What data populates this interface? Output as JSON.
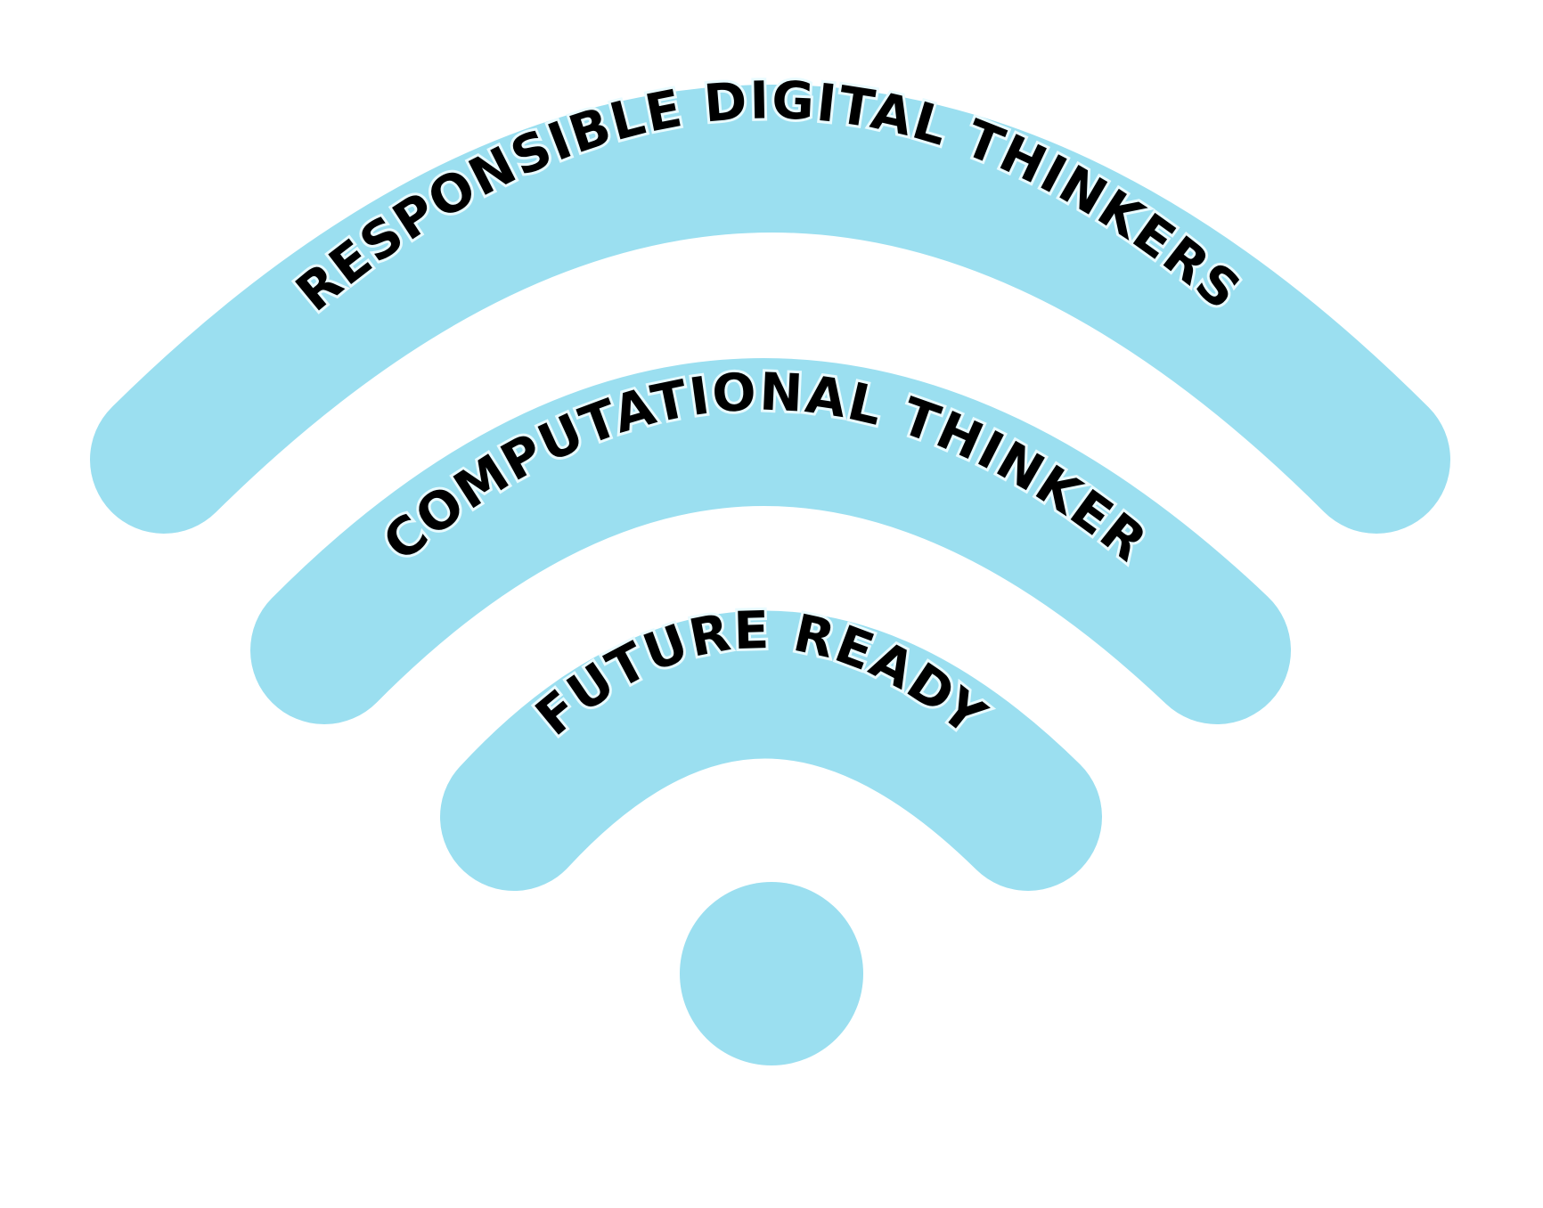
{
  "diagram": {
    "accent_color": "#9BDFF0",
    "text_color": "#000000",
    "icon": "wifi-signal-icon",
    "labels": {
      "outer_arc": "RESPONSIBLE DIGITAL THINKERS",
      "middle_arc": "COMPUTATIONAL THINKER",
      "inner_arc": "FUTURE READY"
    }
  }
}
